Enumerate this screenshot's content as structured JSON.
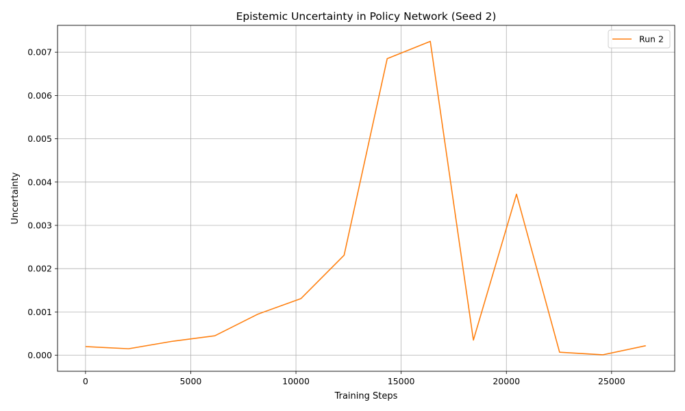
{
  "chart_data": {
    "type": "line",
    "title": "Epistemic Uncertainty in Policy Network (Seed 2)",
    "xlabel": "Training Steps",
    "ylabel": "Uncertainty",
    "xlim": [
      -1330,
      28000
    ],
    "ylim": [
      -0.00037,
      0.00762
    ],
    "xticks": [
      0,
      5000,
      10000,
      15000,
      20000,
      25000
    ],
    "xtick_labels": [
      "0",
      "5000",
      "10000",
      "15000",
      "20000",
      "25000"
    ],
    "yticks": [
      0.0,
      0.001,
      0.002,
      0.003,
      0.004,
      0.005,
      0.006,
      0.007
    ],
    "ytick_labels": [
      "0.000",
      "0.001",
      "0.002",
      "0.003",
      "0.004",
      "0.005",
      "0.006",
      "0.007"
    ],
    "grid": true,
    "legend_position": "upper-right",
    "series": [
      {
        "name": "Run 2",
        "color": "#ff7f0e",
        "x": [
          0,
          2048,
          4096,
          6144,
          8192,
          10240,
          12288,
          14336,
          16384,
          18432,
          20480,
          22528,
          24576,
          26624
        ],
        "y": [
          0.0002,
          0.00015,
          0.00032,
          0.00045,
          0.00095,
          0.00131,
          0.00231,
          0.00685,
          0.00725,
          0.00035,
          0.00372,
          7e-05,
          1e-05,
          0.00022
        ]
      }
    ]
  }
}
